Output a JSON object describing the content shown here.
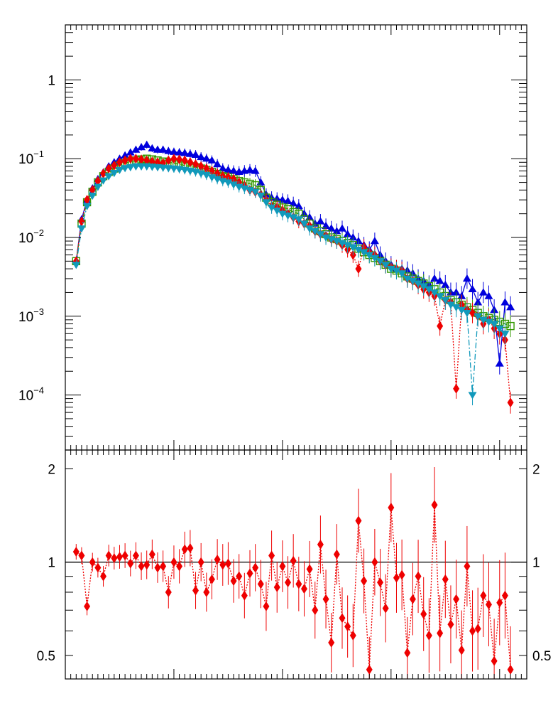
{
  "chart_data": [
    {
      "type": "scatter",
      "panel": "upper",
      "yscale": "log",
      "x_range": [
        0,
        85
      ],
      "ylim": [
        2e-05,
        5
      ],
      "ytick_labels": [
        {
          "value": 1,
          "label": "1"
        },
        {
          "value": 0.1,
          "label": "10",
          "exp": "−1"
        },
        {
          "value": 0.01,
          "label": "10",
          "exp": "−2"
        },
        {
          "value": 0.001,
          "label": "10",
          "exp": "−3"
        },
        {
          "value": 0.0001,
          "label": "10",
          "exp": "−4"
        }
      ],
      "series": [
        {
          "name": "blue",
          "color": "#0000dd",
          "marker": "triangle-up",
          "linestyle": "solid",
          "x": [
            2,
            3,
            4,
            5,
            6,
            7,
            8,
            9,
            10,
            11,
            12,
            13,
            14,
            15,
            16,
            17,
            18,
            19,
            20,
            21,
            22,
            23,
            24,
            25,
            26,
            27,
            28,
            29,
            30,
            31,
            32,
            33,
            34,
            35,
            36,
            37,
            38,
            39,
            40,
            41,
            42,
            43,
            44,
            45,
            46,
            47,
            48,
            49,
            50,
            51,
            52,
            53,
            54,
            55,
            56,
            57,
            58,
            59,
            60,
            61,
            62,
            63,
            64,
            65,
            66,
            67,
            68,
            69,
            70,
            71,
            72,
            73,
            74,
            75,
            76,
            77,
            78,
            79,
            80,
            81,
            82
          ],
          "y": [
            0.005,
            0.017,
            0.03,
            0.042,
            0.055,
            0.067,
            0.08,
            0.09,
            0.1,
            0.11,
            0.12,
            0.13,
            0.14,
            0.15,
            0.135,
            0.13,
            0.13,
            0.125,
            0.122,
            0.12,
            0.118,
            0.115,
            0.112,
            0.105,
            0.1,
            0.095,
            0.085,
            0.075,
            0.072,
            0.07,
            0.068,
            0.07,
            0.072,
            0.07,
            0.05,
            0.035,
            0.032,
            0.031,
            0.03,
            0.029,
            0.027,
            0.025,
            0.02,
            0.018,
            0.015,
            0.016,
            0.014,
            0.013,
            0.012,
            0.013,
            0.011,
            0.01,
            0.009,
            0.008,
            0.007,
            0.009,
            0.006,
            0.005,
            0.0045,
            0.004,
            0.004,
            0.0038,
            0.0035,
            0.003,
            0.0028,
            0.0025,
            0.003,
            0.0028,
            0.0025,
            0.002,
            0.002,
            0.0018,
            0.003,
            0.0022,
            0.0015,
            0.002,
            0.0018,
            0.0012,
            0.00025,
            0.0015,
            0.0013
          ]
        },
        {
          "name": "green",
          "color": "#339900",
          "marker": "open-square",
          "linestyle": "dashed",
          "x": [
            2,
            3,
            4,
            5,
            6,
            7,
            8,
            9,
            10,
            11,
            12,
            13,
            14,
            15,
            16,
            17,
            18,
            19,
            20,
            21,
            22,
            23,
            24,
            25,
            26,
            27,
            28,
            29,
            30,
            31,
            32,
            33,
            34,
            35,
            36,
            37,
            38,
            39,
            40,
            41,
            42,
            43,
            44,
            45,
            46,
            47,
            48,
            49,
            50,
            51,
            52,
            53,
            54,
            55,
            56,
            57,
            58,
            59,
            60,
            61,
            62,
            63,
            64,
            65,
            66,
            67,
            68,
            69,
            70,
            71,
            72,
            73,
            74,
            75,
            76,
            77,
            78,
            79,
            80,
            81,
            82
          ],
          "y": [
            0.005,
            0.015,
            0.028,
            0.038,
            0.05,
            0.06,
            0.068,
            0.075,
            0.082,
            0.088,
            0.092,
            0.095,
            0.098,
            0.1,
            0.098,
            0.095,
            0.092,
            0.09,
            0.088,
            0.085,
            0.082,
            0.08,
            0.078,
            0.075,
            0.072,
            0.068,
            0.064,
            0.06,
            0.058,
            0.055,
            0.052,
            0.05,
            0.048,
            0.046,
            0.04,
            0.032,
            0.028,
            0.026,
            0.024,
            0.023,
            0.021,
            0.02,
            0.017,
            0.015,
            0.013,
            0.012,
            0.011,
            0.01,
            0.0095,
            0.009,
            0.0085,
            0.008,
            0.0072,
            0.0065,
            0.006,
            0.0055,
            0.005,
            0.0045,
            0.004,
            0.0038,
            0.0035,
            0.0032,
            0.003,
            0.0028,
            0.0026,
            0.0024,
            0.0022,
            0.002,
            0.0018,
            0.0016,
            0.0015,
            0.0014,
            0.0013,
            0.0012,
            0.0011,
            0.001,
            0.00095,
            0.0009,
            0.00085,
            0.0008,
            0.00075
          ]
        },
        {
          "name": "red",
          "color": "#ee0000",
          "marker": "diamond",
          "linestyle": "dotted",
          "x": [
            2,
            3,
            4,
            5,
            6,
            7,
            8,
            9,
            10,
            11,
            12,
            13,
            14,
            15,
            16,
            17,
            18,
            19,
            20,
            21,
            22,
            23,
            24,
            25,
            26,
            27,
            28,
            29,
            30,
            31,
            32,
            33,
            34,
            35,
            36,
            37,
            38,
            39,
            40,
            41,
            42,
            43,
            44,
            45,
            46,
            47,
            48,
            49,
            50,
            51,
            52,
            53,
            54,
            55,
            56,
            57,
            58,
            59,
            60,
            61,
            62,
            63,
            64,
            65,
            66,
            67,
            68,
            69,
            70,
            71,
            72,
            73,
            74,
            75,
            76,
            77,
            78,
            79,
            80,
            81,
            82
          ],
          "y": [
            0.005,
            0.016,
            0.03,
            0.04,
            0.052,
            0.065,
            0.075,
            0.082,
            0.09,
            0.095,
            0.1,
            0.1,
            0.098,
            0.095,
            0.092,
            0.09,
            0.088,
            0.095,
            0.1,
            0.098,
            0.095,
            0.09,
            0.085,
            0.08,
            0.075,
            0.07,
            0.065,
            0.06,
            0.058,
            0.055,
            0.05,
            0.045,
            0.04,
            0.038,
            0.035,
            0.03,
            0.025,
            0.024,
            0.022,
            0.02,
            0.018,
            0.016,
            0.015,
            0.014,
            0.012,
            0.011,
            0.0105,
            0.0095,
            0.009,
            0.008,
            0.007,
            0.006,
            0.004,
            0.0075,
            0.0065,
            0.006,
            0.005,
            0.0045,
            0.0042,
            0.004,
            0.0038,
            0.003,
            0.0028,
            0.0025,
            0.0022,
            0.002,
            0.0018,
            0.00075,
            0.0016,
            0.0015,
            0.00012,
            0.0014,
            0.0012,
            0.0011,
            0.001,
            0.0008,
            0.0009,
            0.0007,
            0.0006,
            0.0005,
            8e-05
          ]
        },
        {
          "name": "cyan",
          "color": "#1199bb",
          "marker": "triangle-down",
          "linestyle": "dash-dot",
          "x": [
            2,
            3,
            4,
            5,
            6,
            7,
            8,
            9,
            10,
            11,
            12,
            13,
            14,
            15,
            16,
            17,
            18,
            19,
            20,
            21,
            22,
            23,
            24,
            25,
            26,
            27,
            28,
            29,
            30,
            31,
            32,
            33,
            34,
            35,
            36,
            37,
            38,
            39,
            40,
            41,
            42,
            43,
            44,
            45,
            46,
            47,
            48,
            49,
            50,
            51,
            52,
            53,
            54,
            55,
            56,
            57,
            58,
            59,
            60,
            61,
            62,
            63,
            64,
            65,
            66,
            67,
            68,
            69,
            70,
            71,
            72,
            73,
            74,
            75,
            76,
            77,
            78,
            79,
            80,
            81
          ],
          "y": [
            0.0045,
            0.013,
            0.025,
            0.034,
            0.044,
            0.053,
            0.06,
            0.066,
            0.072,
            0.076,
            0.078,
            0.08,
            0.08,
            0.08,
            0.079,
            0.078,
            0.077,
            0.076,
            0.075,
            0.074,
            0.072,
            0.07,
            0.068,
            0.065,
            0.062,
            0.058,
            0.055,
            0.052,
            0.05,
            0.047,
            0.044,
            0.042,
            0.04,
            0.038,
            0.034,
            0.028,
            0.024,
            0.022,
            0.02,
            0.019,
            0.018,
            0.017,
            0.015,
            0.013,
            0.012,
            0.011,
            0.01,
            0.0095,
            0.009,
            0.0085,
            0.008,
            0.0075,
            0.007,
            0.0065,
            0.006,
            0.0055,
            0.005,
            0.0045,
            0.004,
            0.0038,
            0.0035,
            0.003,
            0.0028,
            0.0026,
            0.0024,
            0.0022,
            0.002,
            0.0018,
            0.0016,
            0.0014,
            0.0013,
            0.0012,
            0.0011,
            0.0001,
            0.001,
            0.0009,
            0.00085,
            0.0008,
            0.0007,
            0.0006
          ]
        }
      ]
    },
    {
      "type": "scatter",
      "panel": "lower-ratio",
      "yscale": "log",
      "x_range": [
        0,
        85
      ],
      "ylim": [
        0.42,
        2.3
      ],
      "reference_line": 1,
      "ytick_labels": [
        {
          "value": 2,
          "label": "2"
        },
        {
          "value": 1,
          "label": "1"
        },
        {
          "value": 0.5,
          "label": "0.5"
        }
      ],
      "series": [
        {
          "name": "ratio",
          "color": "#ee0000",
          "marker": "diamond",
          "linestyle": "dotted",
          "x": [
            2,
            3,
            4,
            5,
            6,
            7,
            8,
            9,
            10,
            11,
            12,
            13,
            14,
            15,
            16,
            17,
            18,
            19,
            20,
            21,
            22,
            23,
            24,
            25,
            26,
            27,
            28,
            29,
            30,
            31,
            32,
            33,
            34,
            35,
            36,
            37,
            38,
            39,
            40,
            41,
            42,
            43,
            44,
            45,
            46,
            47,
            48,
            49,
            50,
            51,
            52,
            53,
            54,
            55,
            56,
            57,
            58,
            59,
            60,
            61,
            62,
            63,
            64,
            65,
            66,
            67,
            68,
            69,
            70,
            71,
            72,
            73,
            74,
            75,
            76,
            77,
            78,
            79,
            80,
            81,
            82
          ],
          "y": [
            1.08,
            1.05,
            0.72,
            1.0,
            0.96,
            0.9,
            1.05,
            1.03,
            1.04,
            1.05,
            0.99,
            1.05,
            0.97,
            0.98,
            1.06,
            0.96,
            0.97,
            0.8,
            1.0,
            0.97,
            1.1,
            1.11,
            0.81,
            1.0,
            0.8,
            0.88,
            1.02,
            0.98,
            0.99,
            0.87,
            0.9,
            0.78,
            0.92,
            0.96,
            0.85,
            0.72,
            1.05,
            0.83,
            0.97,
            0.86,
            1.01,
            0.85,
            0.82,
            0.95,
            0.7,
            1.14,
            0.76,
            0.55,
            1.06,
            0.66,
            0.62,
            0.58,
            1.36,
            0.87,
            0.45,
            1.0,
            0.86,
            0.71,
            1.5,
            0.89,
            0.91,
            0.51,
            0.76,
            0.9,
            0.68,
            0.58,
            1.53,
            0.59,
            0.88,
            0.63,
            0.76,
            0.52,
            0.97,
            0.6,
            0.61,
            0.78,
            0.73,
            0.48,
            0.74,
            0.78,
            0.45
          ]
        }
      ]
    }
  ]
}
